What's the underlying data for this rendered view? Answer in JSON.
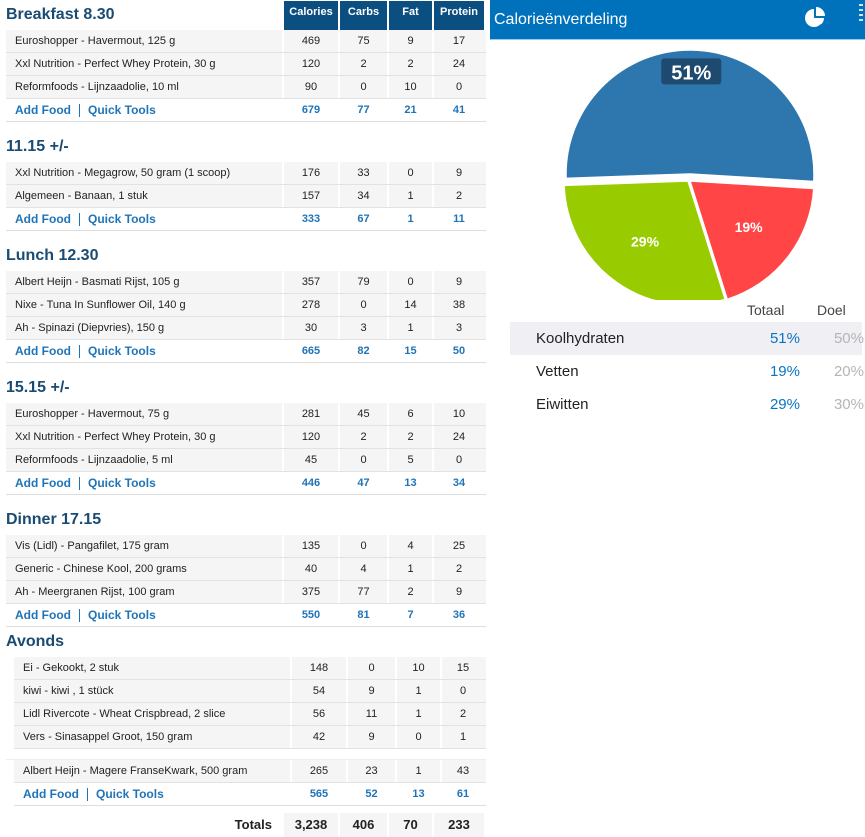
{
  "columns": [
    "Calories",
    "Carbs",
    "Fat",
    "Protein"
  ],
  "add_food_label": "Add Food",
  "quick_tools_label": "Quick Tools",
  "meals": [
    {
      "title": "Breakfast 8.30",
      "items": [
        {
          "name": "Euroshopper - Havermout, 125 g",
          "v": [
            "469",
            "75",
            "9",
            "17"
          ]
        },
        {
          "name": "Xxl Nutrition - Perfect Whey Protein, 30 g",
          "v": [
            "120",
            "2",
            "2",
            "24"
          ]
        },
        {
          "name": "Reformfoods - Lijnzaadolie, 10 ml",
          "v": [
            "90",
            "0",
            "10",
            "0"
          ]
        }
      ],
      "totals": [
        "679",
        "77",
        "21",
        "41"
      ]
    },
    {
      "title": "11.15 +/-",
      "items": [
        {
          "name": "Xxl Nutrition - Megagrow, 50 gram (1 scoop)",
          "v": [
            "176",
            "33",
            "0",
            "9"
          ]
        },
        {
          "name": "Algemeen - Banaan, 1 stuk",
          "v": [
            "157",
            "34",
            "1",
            "2"
          ]
        }
      ],
      "totals": [
        "333",
        "67",
        "1",
        "11"
      ]
    },
    {
      "title": "Lunch 12.30",
      "items": [
        {
          "name": "Albert Heijn - Basmati Rijst, 105 g",
          "v": [
            "357",
            "79",
            "0",
            "9"
          ]
        },
        {
          "name": "Nixe - Tuna In Sunflower Oil, 140 g",
          "v": [
            "278",
            "0",
            "14",
            "38"
          ]
        },
        {
          "name": "Ah - Spinazi (Diepvries), 150 g",
          "v": [
            "30",
            "3",
            "1",
            "3"
          ]
        }
      ],
      "totals": [
        "665",
        "82",
        "15",
        "50"
      ]
    },
    {
      "title": "15.15 +/-",
      "items": [
        {
          "name": "Euroshopper - Havermout, 75 g",
          "v": [
            "281",
            "45",
            "6",
            "10"
          ]
        },
        {
          "name": "Xxl Nutrition - Perfect Whey Protein, 30 g",
          "v": [
            "120",
            "2",
            "2",
            "24"
          ]
        },
        {
          "name": "Reformfoods - Lijnzaadolie, 5 ml",
          "v": [
            "45",
            "0",
            "5",
            "0"
          ]
        }
      ],
      "totals": [
        "446",
        "47",
        "13",
        "34"
      ]
    },
    {
      "title": "Dinner 17.15",
      "items": [
        {
          "name": "Vis (Lidl) - Pangafilet, 175 gram",
          "v": [
            "135",
            "0",
            "4",
            "25"
          ]
        },
        {
          "name": "Generic - Chinese Kool, 200 grams",
          "v": [
            "40",
            "4",
            "1",
            "2"
          ]
        },
        {
          "name": "Ah - Meergranen Rijst, 100 gram",
          "v": [
            "375",
            "77",
            "2",
            "9"
          ]
        }
      ],
      "totals": [
        "550",
        "81",
        "7",
        "36"
      ]
    },
    {
      "title": "Avonds",
      "items": [
        {
          "name": "Ei - Gekookt, 2 stuk",
          "v": [
            "148",
            "0",
            "10",
            "15"
          ]
        },
        {
          "name": "kiwi - kiwi , 1 stück",
          "v": [
            "54",
            "9",
            "1",
            "0"
          ]
        },
        {
          "name": "Lidl Rivercote - Wheat Crispbread, 2 slice",
          "v": [
            "56",
            "11",
            "1",
            "2"
          ]
        },
        {
          "name": "Vers - Sinasappel Groot, 150 gram",
          "v": [
            "42",
            "9",
            "0",
            "1"
          ]
        },
        {
          "gap": true
        },
        {
          "name": "Albert Heijn - Magere FranseKwark, 500 gram",
          "v": [
            "265",
            "23",
            "1",
            "43"
          ]
        }
      ],
      "totals": [
        "565",
        "52",
        "13",
        "61"
      ]
    }
  ],
  "grand_totals": {
    "label": "Totals",
    "v": [
      "3,238",
      "406",
      "70",
      "233"
    ]
  },
  "panel": {
    "title": "Calorieënverdeling",
    "icon": "pie-chart-icon",
    "col_total": "Totaal",
    "col_goal": "Doel",
    "macros": [
      {
        "name": "Koolhydraten",
        "total": "51%",
        "goal": "50%",
        "color": "#2e77ae",
        "pct": 51,
        "label": "51%"
      },
      {
        "name": "Vetten",
        "total": "19%",
        "goal": "20%",
        "color": "#ff4545",
        "pct": 19,
        "label": "19%"
      },
      {
        "name": "Eiwitten",
        "total": "29%",
        "goal": "30%",
        "color": "#99cc00",
        "pct": 29,
        "label": "29%"
      }
    ]
  }
}
